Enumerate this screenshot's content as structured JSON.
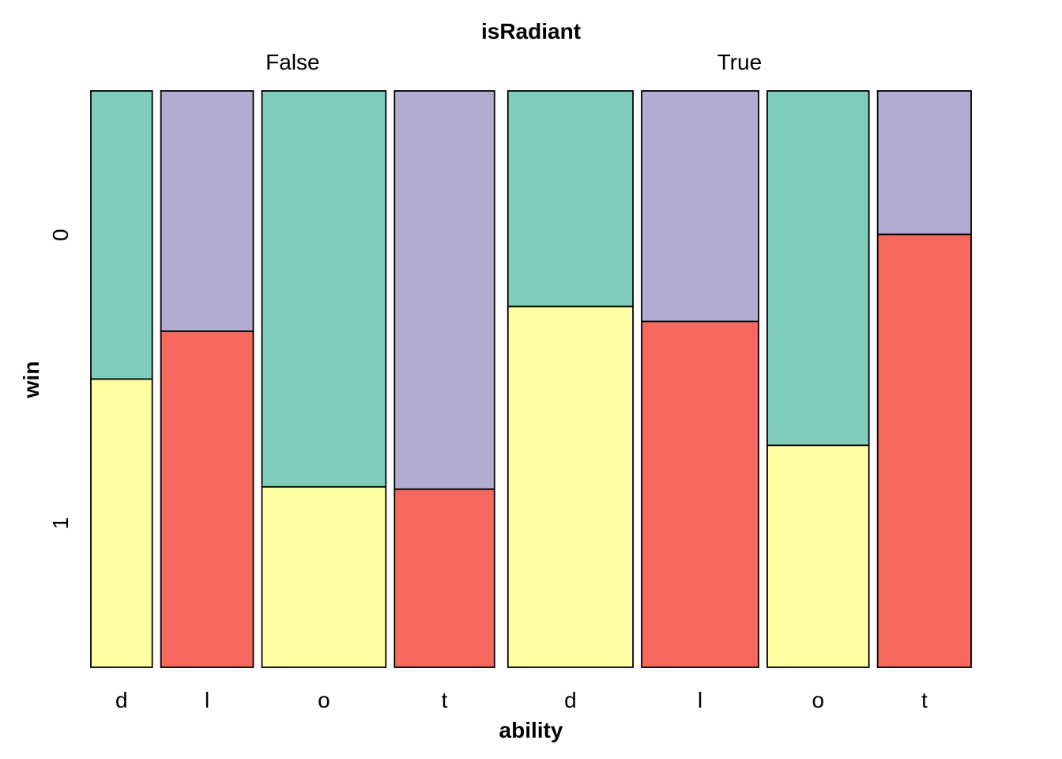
{
  "chart_data": {
    "type": "mosaic",
    "title": "isRadiant",
    "xlabel": "ability",
    "ylabel": "win",
    "groups": [
      {
        "label": "False",
        "bars": [
          {
            "label": "d",
            "width": 0.105,
            "top_value": "0",
            "top_share": 0.5,
            "bottom_color": "#FFFFA3",
            "top_color": "#7FCDBB"
          },
          {
            "label": "l",
            "width": 0.158,
            "top_value": "0",
            "top_share": 0.417,
            "bottom_color": "#F7695F",
            "top_color": "#B2ABD2"
          },
          {
            "label": "o",
            "width": 0.212,
            "top_value": "0",
            "top_share": 0.687,
            "bottom_color": "#FFFFA3",
            "top_color": "#7FCDBB"
          },
          {
            "label": "t",
            "width": 0.171,
            "top_value": "0",
            "top_share": 0.691,
            "bottom_color": "#F7695F",
            "top_color": "#B2ABD2"
          }
        ]
      },
      {
        "label": "True",
        "bars": [
          {
            "label": "d",
            "width": 0.214,
            "top_value": "0",
            "top_share": 0.374,
            "bottom_color": "#FFFFA3",
            "top_color": "#7FCDBB"
          },
          {
            "label": "l",
            "width": 0.2,
            "top_value": "0",
            "top_share": 0.4,
            "bottom_color": "#F7695F",
            "top_color": "#B2ABD2"
          },
          {
            "label": "o",
            "width": 0.174,
            "top_value": "0",
            "top_share": 0.615,
            "bottom_color": "#FFFFA3",
            "top_color": "#7FCDBB"
          },
          {
            "label": "t",
            "width": 0.16,
            "top_value": "0",
            "top_share": 0.249,
            "bottom_color": "#F7695F",
            "top_color": "#B2ABD2"
          }
        ]
      }
    ],
    "y_levels": [
      "0",
      "1"
    ],
    "y_level_positions": [
      0.25,
      0.75
    ]
  }
}
